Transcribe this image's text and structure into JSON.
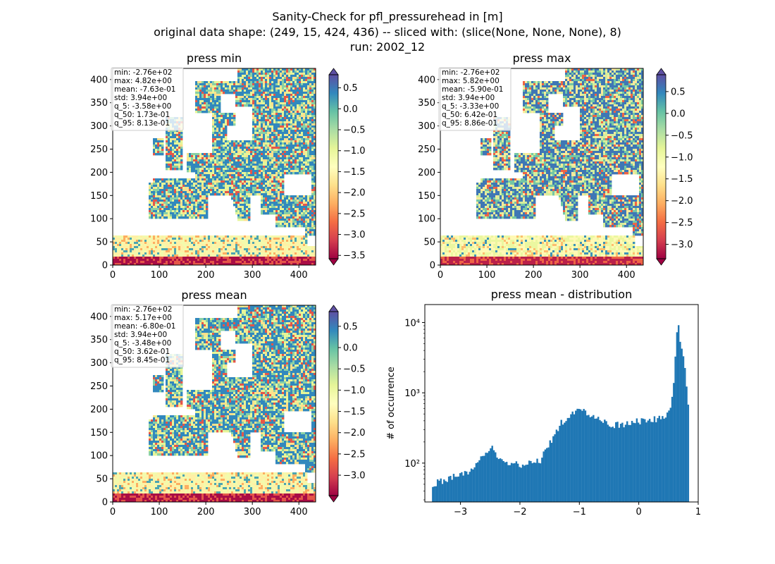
{
  "figure": {
    "title_lines": [
      "Sanity-Check for pfl_pressurehead in [m]",
      "original data shape: (249, 15, 424, 436) -- sliced with: (slice(None, None, None), 8)",
      "run: 2002_12"
    ]
  },
  "colors": {
    "colormap": [
      "#9e0142",
      "#d53e4f",
      "#f46d43",
      "#fdae61",
      "#fee08b",
      "#ffffbf",
      "#e6f598",
      "#abdda4",
      "#66c2a5",
      "#3288bd",
      "#5e4fa2"
    ],
    "hist_bar": "#1f77b4"
  },
  "maps": [
    {
      "title": "press min",
      "xticks": [
        "0",
        "100",
        "200",
        "300",
        "400"
      ],
      "yticks": [
        "0",
        "50",
        "100",
        "150",
        "200",
        "250",
        "300",
        "350",
        "400"
      ],
      "stats": [
        "min: -2.76e+02",
        "max: 4.82e+00",
        "mean: -7.63e-01",
        "std: 3.94e+00",
        "q_5: -3.58e+00",
        "q_50: 1.73e-01",
        "q_95: 8.13e-01"
      ],
      "colorbar": {
        "vmin": -3.58,
        "vmax": 0.813,
        "ticks": [
          "0.5",
          "0.0",
          "−0.5",
          "−1.0",
          "−1.5",
          "−2.0",
          "−2.5",
          "−3.0",
          "−3.5"
        ],
        "tick_values": [
          0.5,
          0.0,
          -0.5,
          -1.0,
          -1.5,
          -2.0,
          -2.5,
          -3.0,
          -3.5
        ]
      }
    },
    {
      "title": "press max",
      "xticks": [
        "0",
        "100",
        "200",
        "300",
        "400"
      ],
      "yticks": [
        "0",
        "50",
        "100",
        "150",
        "200",
        "250",
        "300",
        "350",
        "400"
      ],
      "stats": [
        "min: -2.76e+02",
        "max: 5.82e+00",
        "mean: -5.90e-01",
        "std: 3.94e+00",
        "q_5: -3.33e+00",
        "q_50: 6.42e-01",
        "q_95: 8.86e-01"
      ],
      "colorbar": {
        "vmin": -3.33,
        "vmax": 0.886,
        "ticks": [
          "0.5",
          "0.0",
          "−0.5",
          "−1.0",
          "−1.5",
          "−2.0",
          "−2.5",
          "−3.0"
        ],
        "tick_values": [
          0.5,
          0.0,
          -0.5,
          -1.0,
          -1.5,
          -2.0,
          -2.5,
          -3.0
        ]
      }
    },
    {
      "title": "press mean",
      "xticks": [
        "0",
        "100",
        "200",
        "300",
        "400"
      ],
      "yticks": [
        "0",
        "50",
        "100",
        "150",
        "200",
        "250",
        "300",
        "350",
        "400"
      ],
      "stats": [
        "min: -2.76e+02",
        "max: 5.17e+00",
        "mean: -6.80e-01",
        "std: 3.94e+00",
        "q_5: -3.48e+00",
        "q_50: 3.62e-01",
        "q_95: 8.45e-01"
      ],
      "colorbar": {
        "vmin": -3.48,
        "vmax": 0.845,
        "ticks": [
          "0.5",
          "0.0",
          "−0.5",
          "−1.0",
          "−1.5",
          "−2.0",
          "−2.5",
          "−3.0"
        ],
        "tick_values": [
          0.5,
          0.0,
          -0.5,
          -1.0,
          -1.5,
          -2.0,
          -2.5,
          -3.0
        ]
      }
    }
  ],
  "chart_data": {
    "type": "bar",
    "title": "press mean - distribution",
    "xlabel": "",
    "ylabel": "# of occurrence",
    "yscale": "log",
    "xlim": [
      -3.6,
      1.0
    ],
    "ylim": [
      28,
      18000
    ],
    "xticks": [
      "−3",
      "−2",
      "−1",
      "0",
      "1"
    ],
    "xtick_values": [
      -3,
      -2,
      -1,
      0,
      1
    ],
    "yticks": [
      "10²",
      "10³",
      "10⁴"
    ],
    "ytick_values": [
      100,
      1000,
      10000
    ],
    "bin_start": -3.48,
    "bin_end": 0.845,
    "profile": [
      [
        -3.48,
        50
      ],
      [
        -3.2,
        60
      ],
      [
        -3.0,
        70
      ],
      [
        -2.8,
        80
      ],
      [
        -2.6,
        130
      ],
      [
        -2.45,
        180
      ],
      [
        -2.35,
        110
      ],
      [
        -2.15,
        100
      ],
      [
        -2.0,
        95
      ],
      [
        -1.8,
        100
      ],
      [
        -1.65,
        110
      ],
      [
        -1.55,
        160
      ],
      [
        -1.4,
        260
      ],
      [
        -1.3,
        380
      ],
      [
        -1.15,
        470
      ],
      [
        -1.05,
        540
      ],
      [
        -0.95,
        560
      ],
      [
        -0.85,
        500
      ],
      [
        -0.7,
        420
      ],
      [
        -0.55,
        370
      ],
      [
        -0.4,
        350
      ],
      [
        -0.2,
        360
      ],
      [
        -0.05,
        390
      ],
      [
        0.1,
        400
      ],
      [
        0.3,
        430
      ],
      [
        0.45,
        450
      ],
      [
        0.52,
        520
      ],
      [
        0.56,
        800
      ],
      [
        0.6,
        2000
      ],
      [
        0.63,
        5000
      ],
      [
        0.66,
        13500
      ],
      [
        0.68,
        6000
      ],
      [
        0.72,
        4000
      ],
      [
        0.76,
        2800
      ],
      [
        0.8,
        1500
      ],
      [
        0.845,
        500
      ]
    ]
  }
}
